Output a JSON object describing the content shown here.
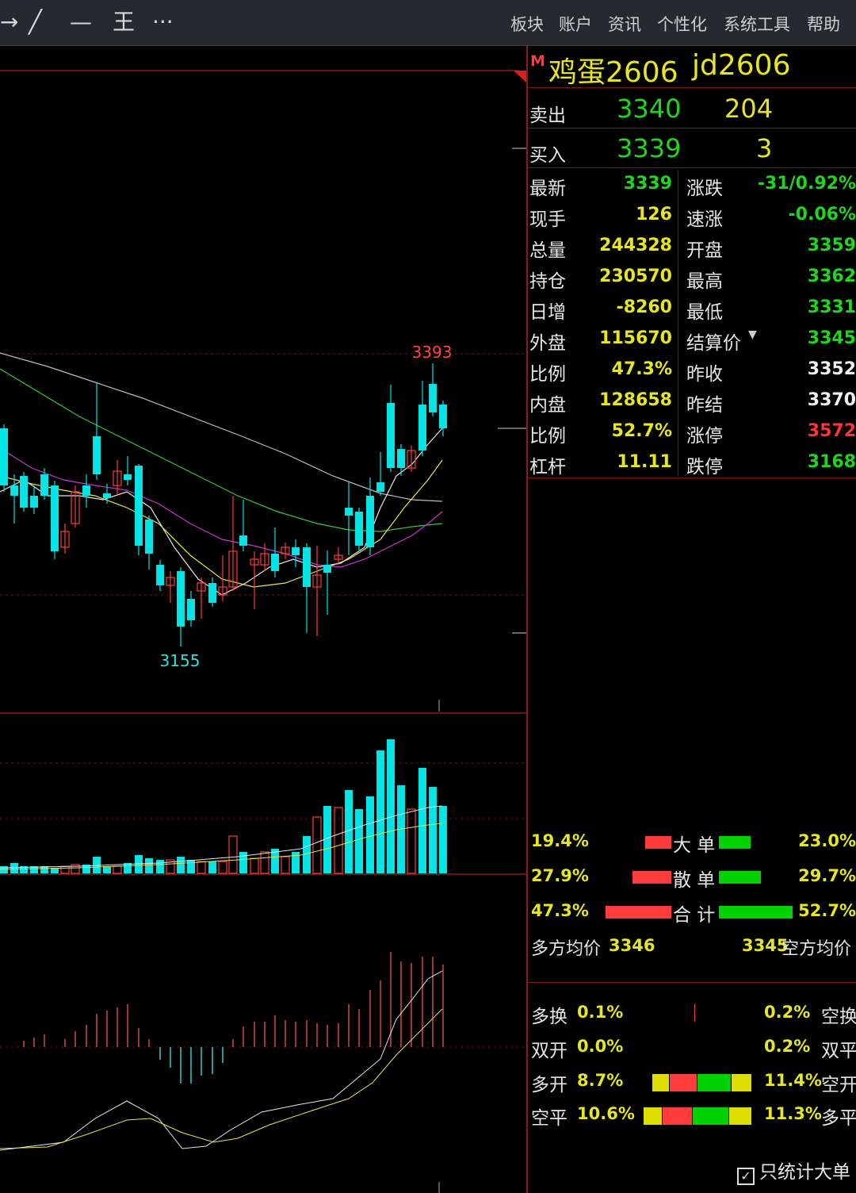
{
  "toolbar": {
    "tools": [
      {
        "name": "arrow-icon",
        "glyph": "→"
      },
      {
        "name": "line-draw-icon",
        "glyph": "╱"
      },
      {
        "name": "horizontal-line-icon",
        "glyph": "—"
      },
      {
        "name": "price-line-icon",
        "glyph": "王"
      },
      {
        "name": "more-icon",
        "glyph": "···"
      }
    ],
    "menu": [
      "板块",
      "账户",
      "资讯",
      "个性化",
      "系统工具",
      "帮助"
    ]
  },
  "quote": {
    "marker": "M",
    "name": "鸡蛋2606",
    "code": "jd2606",
    "sell": {
      "label": "卖出",
      "price": "3340",
      "volume": "204"
    },
    "buy": {
      "label": "买入",
      "price": "3339",
      "volume": "3"
    },
    "stats": [
      {
        "l1": "最新",
        "v1": "3339",
        "c1": "g",
        "l2": "涨跌",
        "v2": "-31/0.92%",
        "c2": "g"
      },
      {
        "l1": "现手",
        "v1": "126",
        "c1": "y",
        "l2": "速涨",
        "v2": "-0.06%",
        "c2": "g"
      },
      {
        "l1": "总量",
        "v1": "244328",
        "c1": "y",
        "l2": "开盘",
        "v2": "3359",
        "c2": "g"
      },
      {
        "l1": "持仓",
        "v1": "230570",
        "c1": "y",
        "l2": "最高",
        "v2": "3362",
        "c2": "g"
      },
      {
        "l1": "日增",
        "v1": "-8260",
        "c1": "y",
        "l2": "最低",
        "v2": "3331",
        "c2": "g"
      },
      {
        "l1": "外盘",
        "v1": "115670",
        "c1": "y",
        "l2": "结算价",
        "v2": "3345",
        "c2": "g"
      },
      {
        "l1": "比例",
        "v1": "47.3%",
        "c1": "y",
        "l2": "昨收",
        "v2": "3352",
        "c2": "w"
      },
      {
        "l1": "内盘",
        "v1": "128658",
        "c1": "y",
        "l2": "昨结",
        "v2": "3370",
        "c2": "w"
      },
      {
        "l1": "比例",
        "v1": "52.7%",
        "c1": "y",
        "l2": "涨停",
        "v2": "3572",
        "c2": "r"
      },
      {
        "l1": "杠杆",
        "v1": "11.11",
        "c1": "y",
        "l2": "跌停",
        "v2": "3168",
        "c2": "g"
      }
    ]
  },
  "flow": {
    "rows": [
      {
        "left": "19.4%",
        "label": "大 单",
        "right": "23.0%",
        "red": 0.19,
        "green": 0.23
      },
      {
        "left": "27.9%",
        "label": "散 单",
        "right": "29.7%",
        "red": 0.28,
        "green": 0.3
      },
      {
        "left": "47.3%",
        "label": "合 计",
        "right": "52.7%",
        "red": 0.47,
        "green": 0.53
      }
    ],
    "long_avg_label": "多方均价",
    "long_avg": "3346",
    "short_avg": "3345",
    "short_avg_label": "空方均价"
  },
  "position_changes": [
    {
      "l": "多换",
      "lv": "0.1%",
      "rv": "0.2%",
      "r": "空换",
      "bars": false
    },
    {
      "l": "双开",
      "lv": "0.0%",
      "rv": "0.2%",
      "r": "双平",
      "bars": false
    },
    {
      "l": "多开",
      "lv": "8.7%",
      "rv": "11.4%",
      "r": "空开",
      "bars": true
    },
    {
      "l": "空平",
      "lv": "10.6%",
      "rv": "11.3%",
      "r": "多平",
      "bars": true
    }
  ],
  "only_large_label": "只统计大单",
  "chart_data": {
    "type": "candlestick",
    "high_label": "3393",
    "low_label": "3155",
    "colors": {
      "up": "#ff3b3b",
      "down": "#00e5e5",
      "ma1": "#e8e8e8",
      "ma2": "#e6e64a",
      "ma3": "#cc33cc",
      "ma4": "#33cc33",
      "ma5": "#bbbbbb"
    }
  }
}
